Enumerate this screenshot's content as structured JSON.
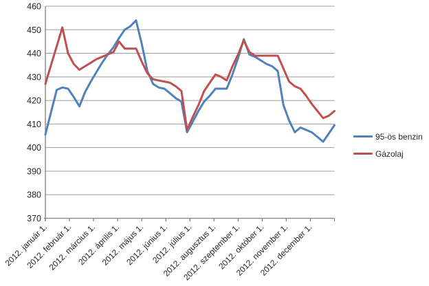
{
  "chart_data": {
    "type": "line",
    "title": "",
    "xlabel": "",
    "ylabel": "",
    "ylim": [
      370,
      460
    ],
    "y_tick_step": 10,
    "y_tick_labels": [
      "370",
      "380",
      "390",
      "400",
      "410",
      "420",
      "430",
      "440",
      "450",
      "460"
    ],
    "x_tick_labels": [
      "2012. január 1.",
      "2012. február 1.",
      "2012. március 1.",
      "2012. április 1.",
      "2012. május 1.",
      "2012. június 1.",
      "2012. július 1.",
      "2012. augusztus 1.",
      "2012. szeptember 1.",
      "2012. október 1.",
      "2012. november 1.",
      "2012. december 1."
    ],
    "x_unit": "week",
    "grid": "horizontal",
    "legend_position": "right",
    "colors": {
      "gridline": "#9c9c9c",
      "axis": "#808080",
      "text": "#262626"
    },
    "series": [
      {
        "name": "95-ös benzin",
        "color": "#4f81bd",
        "values": [
          405.5,
          415,
          424.5,
          425.5,
          425,
          421.5,
          417.5,
          423.5,
          428,
          432,
          436,
          439.5,
          442.5,
          446.5,
          450,
          451.5,
          454,
          444,
          432.5,
          427,
          425.5,
          425,
          423,
          421,
          419.5,
          406.5,
          411,
          415.5,
          419.5,
          422,
          425,
          425,
          425,
          431,
          438,
          446,
          439.5,
          438.5,
          437,
          435.5,
          434.5,
          432.5,
          418,
          411.5,
          406.5,
          408.5,
          407.5,
          406.5,
          404.5,
          402.5,
          406,
          409.5
        ]
      },
      {
        "name": "Gázolaj",
        "color": "#c0504d",
        "values": [
          427,
          435,
          443,
          451,
          440,
          435.5,
          433,
          434.5,
          436,
          437.5,
          438.5,
          439.5,
          440.5,
          445,
          442,
          442,
          442,
          436.5,
          431.5,
          429,
          428.5,
          428,
          427.5,
          426,
          424,
          407.5,
          413,
          418,
          424,
          427.5,
          431,
          430,
          428.5,
          434.5,
          439.5,
          445.5,
          440.5,
          439,
          439,
          439,
          439,
          439,
          433.5,
          428,
          426,
          425,
          422,
          418.5,
          415.5,
          412.5,
          413.5,
          415.5
        ]
      }
    ]
  },
  "legend": {
    "items": [
      {
        "label": "95-ös benzin"
      },
      {
        "label": "Gázolaj"
      }
    ]
  }
}
